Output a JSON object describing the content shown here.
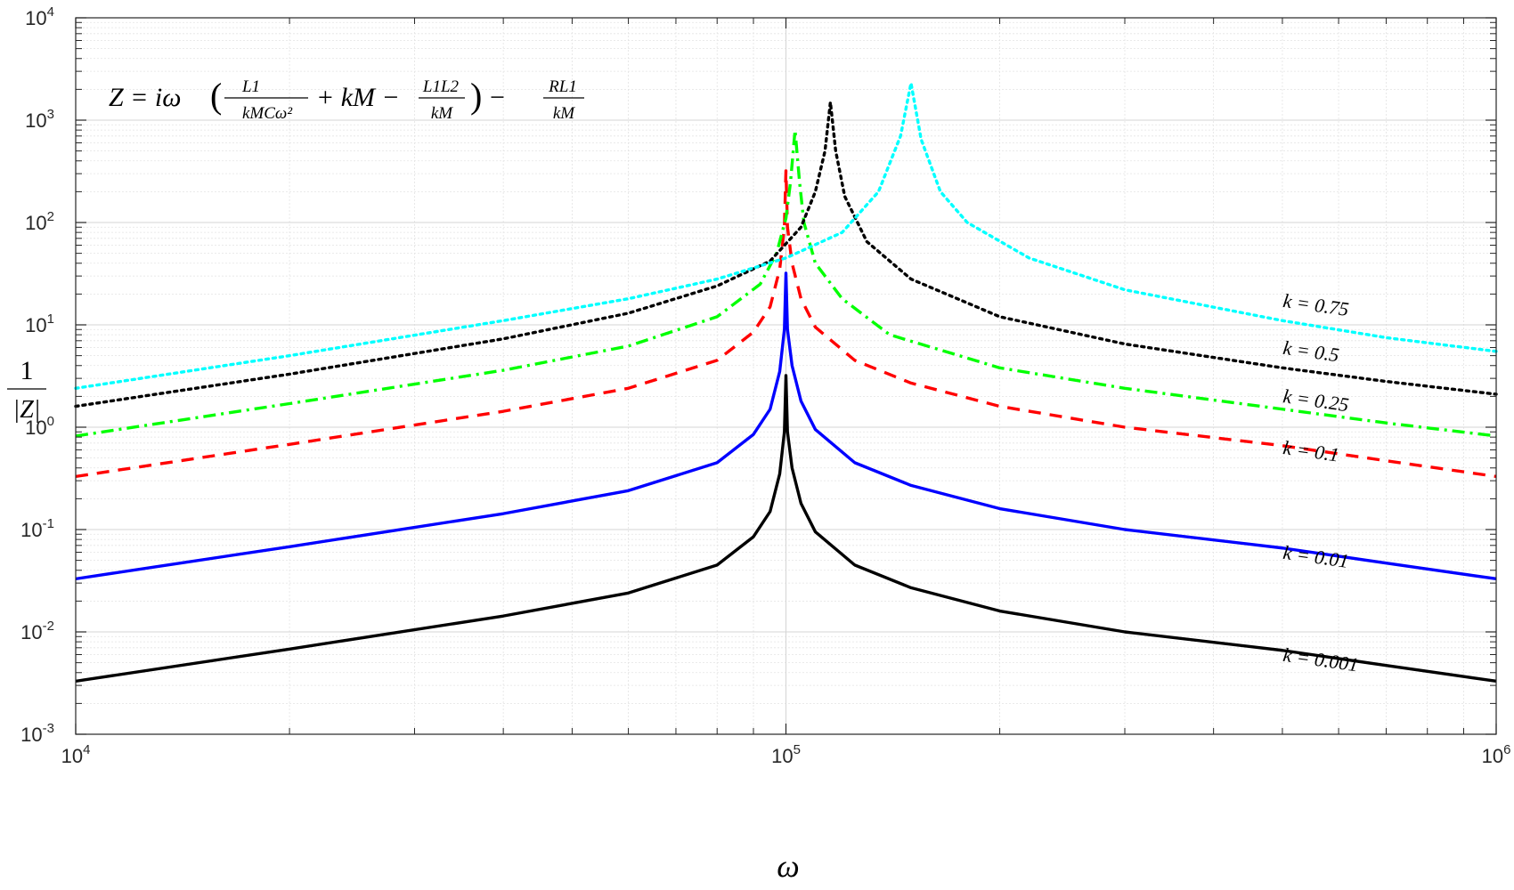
{
  "chart_data": {
    "type": "line",
    "xscale": "log",
    "yscale": "log",
    "xlim": [
      10000,
      1000000
    ],
    "ylim": [
      0.001,
      10000
    ],
    "grid": true,
    "xlabel": "ω",
    "ylabel": {
      "numerator": "1",
      "denominator": "|Z|"
    },
    "formula": {
      "lhs": "Z = iω",
      "term1_num": "L1",
      "term1_den": "kMCω²",
      "mid": "+ kM −",
      "term2_num": "L1L2",
      "term2_den": "kM",
      "minus": "−",
      "term3_num": "RL1",
      "term3_den": "kM"
    },
    "x_ticks": [
      {
        "base": "10",
        "exp": "4",
        "value": 10000
      },
      {
        "base": "10",
        "exp": "5",
        "value": 100000
      },
      {
        "base": "10",
        "exp": "6",
        "value": 1000000
      }
    ],
    "y_ticks": [
      {
        "base": "10",
        "exp": "-3",
        "value": 0.001
      },
      {
        "base": "10",
        "exp": "-2",
        "value": 0.01
      },
      {
        "base": "10",
        "exp": "-1",
        "value": 0.1
      },
      {
        "base": "10",
        "exp": "0",
        "value": 1
      },
      {
        "base": "10",
        "exp": "1",
        "value": 10
      },
      {
        "base": "10",
        "exp": "2",
        "value": 100
      },
      {
        "base": "10",
        "exp": "3",
        "value": 1000
      },
      {
        "base": "10",
        "exp": "4",
        "value": 10000
      }
    ],
    "series": [
      {
        "label": "k = 0.001",
        "color": "#000000",
        "style": "solid",
        "x": [
          10000,
          20000,
          40000,
          60000,
          80000,
          90000,
          95000,
          98000,
          99500,
          100000,
          100500,
          102000,
          105000,
          110000,
          125000,
          150000,
          200000,
          300000,
          500000,
          700000,
          1000000
        ],
        "y": [
          0.0033,
          0.0068,
          0.0143,
          0.024,
          0.045,
          0.085,
          0.15,
          0.35,
          0.9,
          3.2,
          0.9,
          0.4,
          0.18,
          0.095,
          0.045,
          0.027,
          0.016,
          0.01,
          0.0066,
          0.0047,
          0.0033
        ]
      },
      {
        "label": "k = 0.01",
        "color": "#0000ff",
        "style": "solid",
        "x": [
          10000,
          20000,
          40000,
          60000,
          80000,
          90000,
          95000,
          98000,
          99500,
          100000,
          100500,
          102000,
          105000,
          110000,
          125000,
          150000,
          200000,
          300000,
          500000,
          700000,
          1000000
        ],
        "y": [
          0.033,
          0.068,
          0.143,
          0.24,
          0.45,
          0.85,
          1.5,
          3.5,
          9,
          32,
          9,
          4,
          1.8,
          0.95,
          0.45,
          0.27,
          0.16,
          0.1,
          0.066,
          0.047,
          0.033
        ]
      },
      {
        "label": "k = 0.1",
        "color": "#ff0000",
        "style": "dashed",
        "x": [
          10000,
          20000,
          40000,
          60000,
          80000,
          90000,
          95000,
          98000,
          99500,
          100000,
          100500,
          102000,
          105000,
          110000,
          125000,
          150000,
          200000,
          300000,
          500000,
          700000,
          1000000
        ],
        "y": [
          0.33,
          0.68,
          1.43,
          2.4,
          4.5,
          8.5,
          15,
          35,
          90,
          320,
          90,
          40,
          18,
          9.5,
          4.5,
          2.7,
          1.6,
          1.0,
          0.66,
          0.47,
          0.33
        ]
      },
      {
        "label": "k = 0.25",
        "color": "#00ff00",
        "style": "dashdot",
        "x": [
          10000,
          20000,
          40000,
          60000,
          80000,
          92000,
          97000,
          100000,
          101500,
          103000,
          104500,
          106000,
          110000,
          120000,
          140000,
          200000,
          300000,
          500000,
          700000,
          1000000
        ],
        "y": [
          0.82,
          1.7,
          3.6,
          6.2,
          12,
          25,
          50,
          110,
          250,
          800,
          250,
          100,
          40,
          18,
          8,
          3.8,
          2.4,
          1.5,
          1.1,
          0.82
        ]
      },
      {
        "label": "k = 0.5",
        "color": "#000000",
        "style": "dotted",
        "x": [
          10000,
          20000,
          40000,
          60000,
          80000,
          95000,
          105000,
          110000,
          113500,
          115500,
          117500,
          121000,
          130000,
          150000,
          200000,
          300000,
          500000,
          700000,
          1000000
        ],
        "y": [
          1.6,
          3.3,
          7.3,
          13,
          24,
          42,
          90,
          200,
          500,
          1500,
          500,
          180,
          65,
          28,
          12,
          6.5,
          3.8,
          2.8,
          2.1
        ]
      },
      {
        "label": "k = 0.75",
        "color": "#00ffff",
        "style": "dotted",
        "x": [
          10000,
          20000,
          40000,
          60000,
          80000,
          100000,
          120000,
          135000,
          145000,
          150000,
          155000,
          165000,
          180000,
          220000,
          300000,
          500000,
          700000,
          1000000
        ],
        "y": [
          2.4,
          5,
          11,
          18,
          28,
          45,
          80,
          200,
          700,
          2300,
          650,
          200,
          100,
          45,
          22,
          11,
          7.5,
          5.5
        ]
      }
    ],
    "label_positions_data": [
      {
        "label": "k = 0.75",
        "x": 500000,
        "y": 15,
        "angle_deg": 8
      },
      {
        "label": "k = 0.5",
        "x": 500000,
        "y": 5.2,
        "angle_deg": 8
      },
      {
        "label": "k = 0.25",
        "x": 500000,
        "y": 1.75,
        "angle_deg": 8
      },
      {
        "label": "k = 0.1",
        "x": 500000,
        "y": 0.55,
        "angle_deg": 8
      },
      {
        "label": "k = 0.01",
        "x": 500000,
        "y": 0.052,
        "angle_deg": 8
      },
      {
        "label": "k = 0.001",
        "x": 500000,
        "y": 0.0052,
        "angle_deg": 8
      }
    ]
  }
}
